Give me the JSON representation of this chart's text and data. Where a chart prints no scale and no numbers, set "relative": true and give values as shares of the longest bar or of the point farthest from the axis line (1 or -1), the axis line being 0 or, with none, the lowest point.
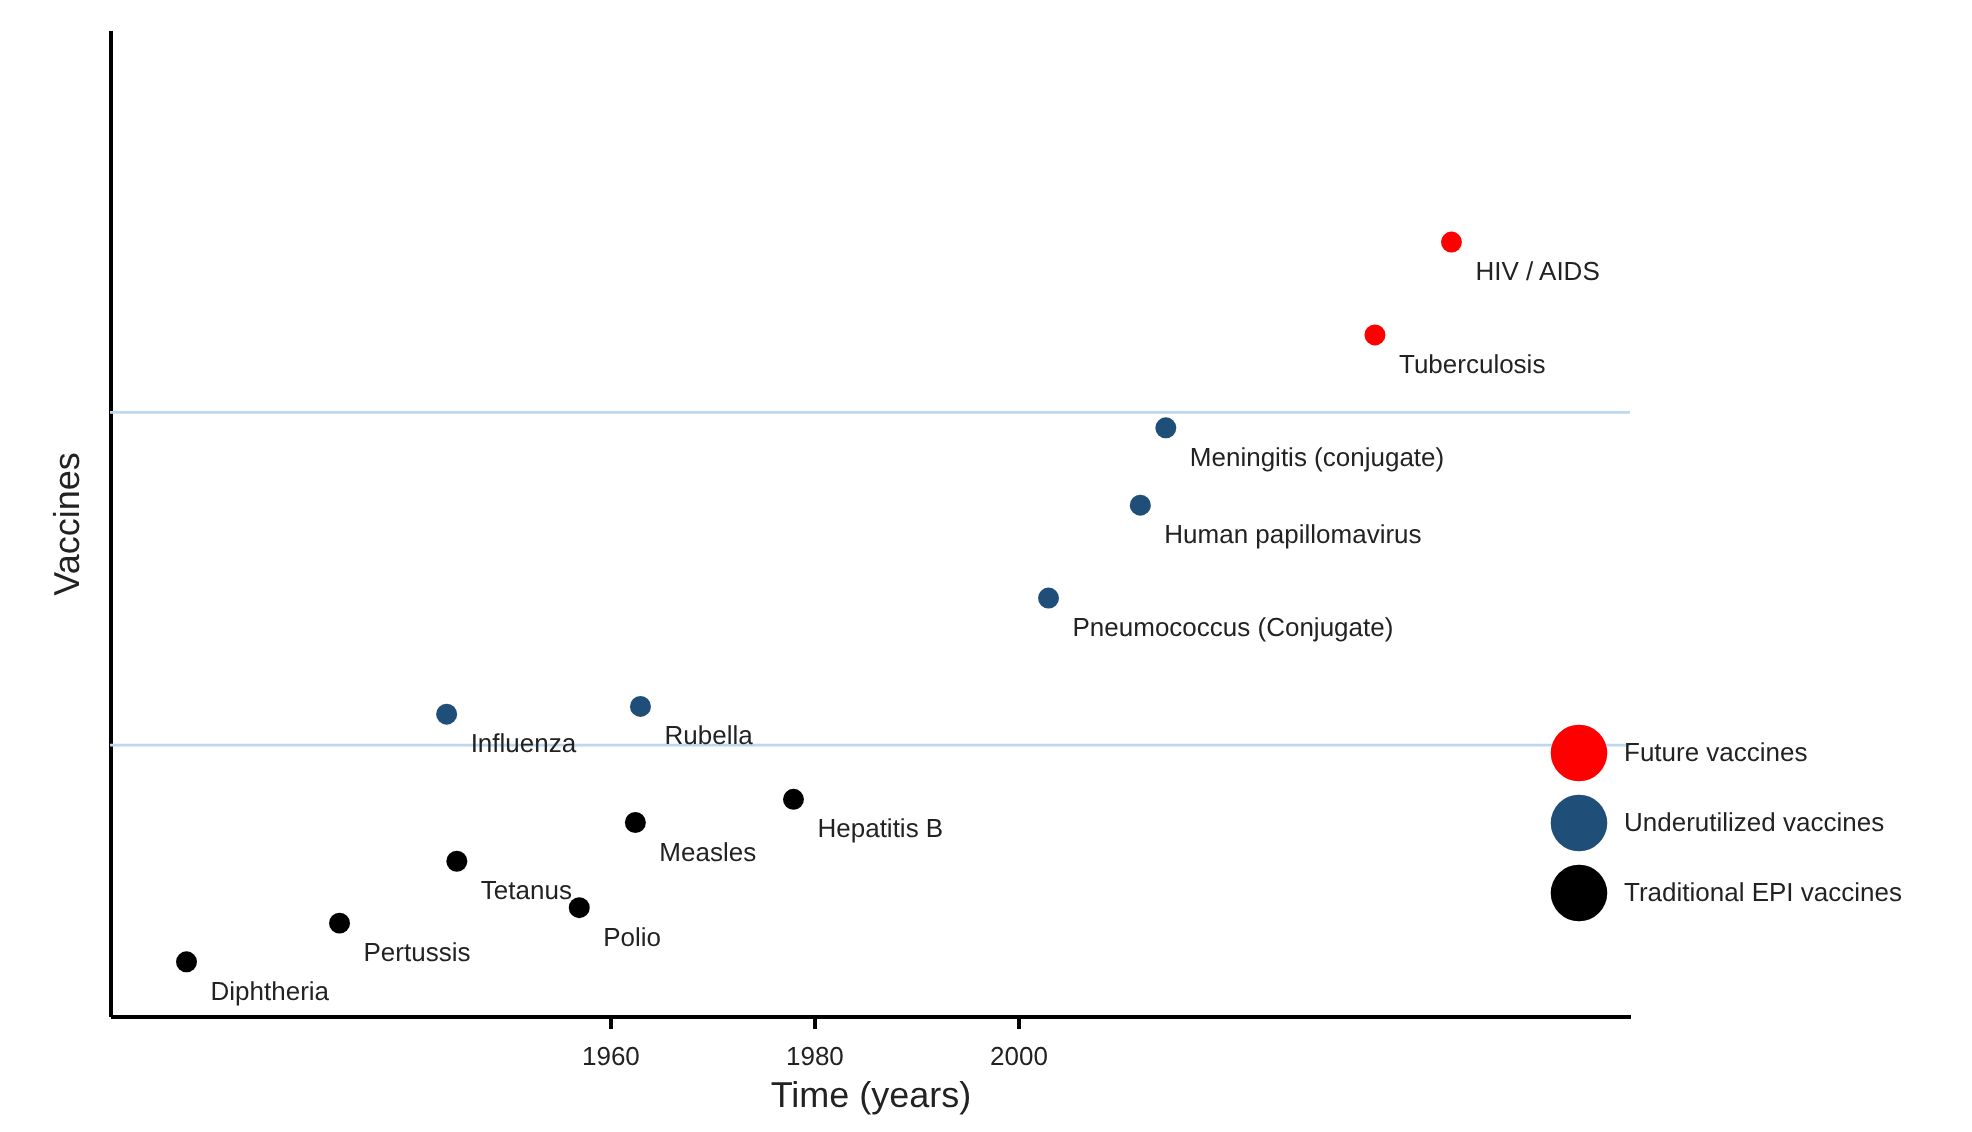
{
  "chart_data": {
    "type": "scatter",
    "xlabel": "Time (years)",
    "ylabel": "Vaccines",
    "relative": true,
    "marker": "circle",
    "legend": "bottom right",
    "xlim": [
      1911,
      2060
    ],
    "xticks": [
      1960,
      1980,
      2000
    ],
    "tick_labels": "x",
    "series": [
      {
        "name": "Future vaccines",
        "color": "#ff0000",
        "x": [
          2035,
          2042.5
        ],
        "values": [
          0.88,
          1.0
        ]
      },
      {
        "name": "Underutilized vaccines",
        "color": "#1f4e79",
        "x": [
          1944,
          1963,
          2003,
          2012,
          2014.5
        ],
        "values": [
          0.39,
          0.4,
          0.54,
          0.66,
          0.76
        ]
      },
      {
        "name": "Traditional EPI vaccines",
        "color": "#000000",
        "x": [
          1918.5,
          1933.5,
          1945,
          1957,
          1962.5,
          1978
        ],
        "values": [
          0.07,
          0.12,
          0.2,
          0.14,
          0.25,
          0.28
        ]
      }
    ],
    "ref_lines": [
      {
        "axis": "y",
        "value": 0.35,
        "color": "#bdd7ee"
      },
      {
        "axis": "y",
        "value": 0.78,
        "color": "#bdd7ee"
      }
    ],
    "annotations": [
      {
        "text": "HIV / AIDS",
        "x": 2042.5,
        "y": 1.0
      },
      {
        "text": "Tuberculosis",
        "x": 2035,
        "y": 0.88
      },
      {
        "text": "Meningitis (conjugate)",
        "x": 2014.5,
        "y": 0.76
      },
      {
        "text": "Human papillomavirus",
        "x": 2012,
        "y": 0.66
      },
      {
        "text": "Pneumococcus (Conjugate)",
        "x": 2003,
        "y": 0.54
      },
      {
        "text": "Influenza",
        "x": 1944,
        "y": 0.39
      },
      {
        "text": "Rubella",
        "x": 1963,
        "y": 0.4
      },
      {
        "text": "Hepatitis B",
        "x": 1978,
        "y": 0.28
      },
      {
        "text": "Measles",
        "x": 1962.5,
        "y": 0.25
      },
      {
        "text": "Tetanus",
        "x": 1945,
        "y": 0.2
      },
      {
        "text": "Polio",
        "x": 1957,
        "y": 0.14
      },
      {
        "text": "Pertussis",
        "x": 1933.5,
        "y": 0.12
      },
      {
        "text": "Diphtheria",
        "x": 1918.5,
        "y": 0.07
      }
    ]
  }
}
